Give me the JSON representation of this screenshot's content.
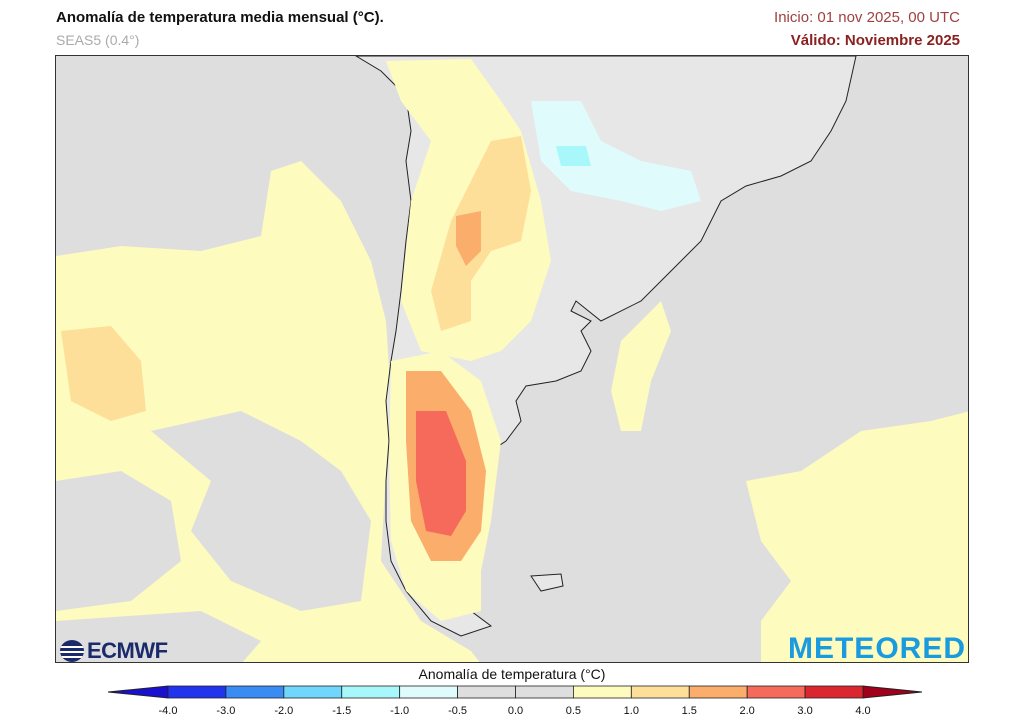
{
  "header": {
    "title": "Anomalía de temperatura media mensual (°C).",
    "subtitle": "SEAS5 (0.4°)",
    "init": "Inicio: 01 nov 2025, 00 UTC",
    "valid": "Válido: Noviembre 2025"
  },
  "logos": {
    "ecmwf": "ECMWF",
    "meteored": "METEORED"
  },
  "colorbar": {
    "label": "Anomalía de temperatura (°C)",
    "ticks": [
      "-4.0",
      "-3.0",
      "-2.0",
      "-1.5",
      "-1.0",
      "-0.5",
      "0.0",
      "0.5",
      "1.0",
      "1.5",
      "2.0",
      "3.0",
      "4.0"
    ],
    "colors": [
      "#2233ee",
      "#3a8cf5",
      "#70d6fb",
      "#a8f7fb",
      "#e0fbfb",
      "#dedede",
      "#dedede",
      "#fdfbbd",
      "#fddf9a",
      "#fbad6c",
      "#f66a5c",
      "#d9262f"
    ],
    "under_color": "#1a10d0",
    "over_color": "#a0001c"
  },
  "map": {
    "region": "Southern South America",
    "ocean_color": "#dedede",
    "land_color": "#e6e6e6"
  }
}
